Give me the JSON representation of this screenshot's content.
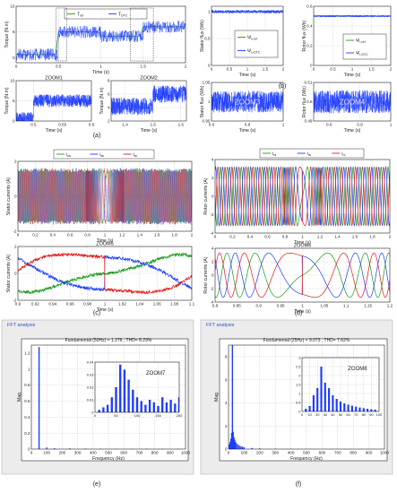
{
  "chart_data": [
    {
      "id": "torque",
      "type": "line",
      "panel_label": "",
      "ylabel": "Torque (N.m)",
      "xlabel": "Time (s)",
      "xlim": [
        0,
        2
      ],
      "ylim": [
        -1,
        10
      ],
      "x_ticks": [
        0,
        0.5,
        1,
        1.5,
        2
      ],
      "y_ticks": [
        0,
        5,
        10
      ],
      "legend": [
        "T_ref",
        "T_DTC"
      ],
      "legend_placement": "top",
      "series": [
        {
          "name": "T_ref",
          "color": "#1a9a1a",
          "steps": [
            [
              0,
              0.6
            ],
            [
              0.5,
              5
            ],
            [
              1.0,
              4.2
            ],
            [
              1.5,
              6
            ],
            [
              2,
              6
            ]
          ]
        },
        {
          "name": "T_DTC",
          "color": "#1f3dff",
          "noise": 1.2,
          "steps": [
            [
              0,
              0.6
            ],
            [
              0.5,
              5
            ],
            [
              1.0,
              4.2
            ],
            [
              1.5,
              6
            ],
            [
              2,
              6
            ]
          ]
        }
      ],
      "annotations": [
        "ZOOM1",
        "ZOOM2"
      ]
    },
    {
      "id": "stator_flux",
      "type": "line",
      "ylabel": "Stator flux (Wb)",
      "xlabel": "Time (s)",
      "xlim": [
        0,
        2
      ],
      "ylim": [
        0,
        1.1
      ],
      "x_ticks": [
        0,
        0.5,
        1,
        1.5,
        2
      ],
      "y_ticks": [
        0,
        0.5,
        1
      ],
      "legend": [
        "Ψ_s-ref",
        "Ψ_s-DTC"
      ],
      "legend_placement": "bottom-center",
      "series": [
        {
          "name": "Ψ_s-ref",
          "color": "#1a9a1a",
          "level": 1.0
        },
        {
          "name": "Ψ_s-DTC",
          "color": "#1f3dff",
          "level": 1.0,
          "noise": 0.03
        }
      ]
    },
    {
      "id": "rotor_flux",
      "type": "line",
      "ylabel": "Rotor flux (Wb)",
      "xlabel": "Time (s)",
      "xlim": [
        0,
        2
      ],
      "ylim": [
        0,
        0.6
      ],
      "x_ticks": [
        0,
        0.5,
        1,
        1.5,
        2
      ],
      "y_ticks": [
        0,
        0.2,
        0.4,
        0.6
      ],
      "legend": [
        "Ψ_r-ref",
        "Ψ_r-DTC"
      ],
      "legend_placement": "bottom-right",
      "series": [
        {
          "name": "Ψ_r-ref",
          "color": "#1a9a1a",
          "level": 0.5
        },
        {
          "name": "Ψ_r-DTC",
          "color": "#1f3dff",
          "level": 0.5,
          "noise": 0.01
        }
      ]
    },
    {
      "id": "zoom1",
      "type": "line",
      "title": "ZOOM1",
      "ylabel": "Torque (N.m)",
      "xlabel": "Time (s)",
      "xlim": [
        0.47,
        0.6
      ],
      "ylim": [
        0,
        10
      ],
      "x_ticks": [
        0.5,
        0.55,
        0.6
      ],
      "y_ticks": [
        0,
        5,
        10
      ],
      "series": [
        {
          "name": "T_DTC",
          "color": "#1f3dff",
          "noise": 1.6,
          "steps": [
            [
              0.47,
              0.6
            ],
            [
              0.5,
              5
            ],
            [
              0.6,
              5
            ]
          ]
        }
      ]
    },
    {
      "id": "zoom2",
      "type": "line",
      "title": "ZOOM2",
      "ylabel": "Torque (N.m)",
      "xlabel": "Time (s)",
      "xlim": [
        1.35,
        1.62
      ],
      "ylim": [
        2,
        8
      ],
      "x_ticks": [
        1.4,
        1.5,
        1.6
      ],
      "y_ticks": [
        2,
        4,
        6,
        8
      ],
      "series": [
        {
          "name": "T_DTC",
          "color": "#1f3dff",
          "noise": 1.3,
          "steps": [
            [
              1.35,
              4.2
            ],
            [
              1.5,
              6
            ],
            [
              1.62,
              6
            ]
          ]
        }
      ]
    },
    {
      "id": "zoom3",
      "type": "line",
      "title": "ZOOM3",
      "ylabel": "Stator flux (Wb)",
      "xlabel": "Time (s)",
      "xlim": [
        0.6,
        1
      ],
      "ylim": [
        0.95,
        1.05
      ],
      "x_ticks": [
        0.6,
        0.8,
        1
      ],
      "y_ticks": [
        0.95,
        1,
        1.05
      ],
      "series": [
        {
          "name": "Ψ_s-DTC",
          "color": "#1f3dff",
          "level": 1.0,
          "noise": 0.028
        }
      ]
    },
    {
      "id": "zoom4",
      "type": "line",
      "title": "ZOOM4",
      "ylabel": "Rotor flux (Wb)",
      "xlabel": "Time (s)",
      "xlim": [
        0.5,
        1
      ],
      "ylim": [
        0.49,
        0.51
      ],
      "x_ticks": [
        0.6,
        0.8,
        1
      ],
      "y_ticks": [
        0.49,
        0.5,
        0.51
      ],
      "series": [
        {
          "name": "Ψ_r-DTC",
          "color": "#1f3dff",
          "level": 0.5,
          "noise": 0.006
        }
      ]
    },
    {
      "id": "stator_currents",
      "type": "line",
      "ylabel": "Stator currents (A)",
      "xlabel": "Time (s)",
      "xlim": [
        0,
        2
      ],
      "ylim": [
        -2,
        2
      ],
      "x_ticks": [
        0,
        0.2,
        0.4,
        0.6,
        0.8,
        1,
        1.2,
        1.4,
        1.6,
        1.8,
        2
      ],
      "y_ticks": [
        -2,
        0,
        2
      ],
      "legend": [
        "isa",
        "isb",
        "isc"
      ],
      "legend_placement": "top",
      "wave": {
        "freq": 50,
        "amp": 1.5,
        "reversal_at": 1.0,
        "dense": true
      },
      "series": [
        {
          "name": "isa",
          "color": "#1a9a1a"
        },
        {
          "name": "isb",
          "color": "#1f3dff"
        },
        {
          "name": "isc",
          "color": "#e01a1a"
        }
      ]
    },
    {
      "id": "rotor_currents",
      "type": "line",
      "ylabel": "Rotor currents (A)",
      "xlabel": "Time (s)",
      "xlim": [
        0,
        2
      ],
      "ylim": [
        -4,
        4
      ],
      "x_ticks": [
        0,
        0.2,
        0.4,
        0.6,
        0.8,
        1,
        1.2,
        1.4,
        1.6,
        1.8,
        2
      ],
      "y_ticks": [
        -4,
        -2,
        0,
        2,
        4
      ],
      "legend": [
        "ira",
        "irb",
        "irc"
      ],
      "legend_placement": "top",
      "wave": {
        "freq": 12.5,
        "amp": 3.2,
        "reversal_at": 1.0
      },
      "series": [
        {
          "name": "ira",
          "color": "#1a9a1a"
        },
        {
          "name": "irb",
          "color": "#1f3dff"
        },
        {
          "name": "irc",
          "color": "#e01a1a"
        }
      ]
    },
    {
      "id": "zoom5",
      "type": "line",
      "title": "ZOOM5",
      "ylabel": "Stator currents (A)",
      "xlabel": "Time (s)",
      "xlim": [
        0.9,
        1.1
      ],
      "ylim": [
        -2,
        2
      ],
      "x_ticks": [
        0.9,
        0.92,
        0.94,
        0.96,
        0.98,
        1,
        1.02,
        1.04,
        1.06,
        1.08,
        1.1
      ],
      "y_ticks": [
        -2,
        0,
        2
      ],
      "wave": {
        "freq": 6,
        "amp": 1.4,
        "reversal_at": 1.0,
        "noise": 0.12
      },
      "series": [
        {
          "name": "isa",
          "color": "#1a9a1a"
        },
        {
          "name": "isb",
          "color": "#1f3dff"
        },
        {
          "name": "isc",
          "color": "#e01a1a"
        }
      ]
    },
    {
      "id": "zoom6",
      "type": "line",
      "title": "ZOOM6",
      "ylabel": "Rotor currents (A)",
      "xlabel": "Time (s)",
      "xlim": [
        0.8,
        1.2
      ],
      "ylim": [
        -4,
        4
      ],
      "x_ticks": [
        0.8,
        0.85,
        0.9,
        0.95,
        1,
        1.05,
        1.1,
        1.15,
        1.2
      ],
      "y_ticks": [
        -4,
        -2,
        0,
        2,
        4
      ],
      "wave": {
        "freq": 12.5,
        "amp": 3.3,
        "reversal_at": 1.0
      },
      "series": [
        {
          "name": "ira",
          "color": "#1a9a1a"
        },
        {
          "name": "irb",
          "color": "#1f3dff"
        },
        {
          "name": "irc",
          "color": "#e01a1a"
        }
      ]
    },
    {
      "id": "fft_stator",
      "type": "bar",
      "window_title": "FFT analysis",
      "title": "Fundamental (50Hz) = 1.276 , THD= 8.29%",
      "ylabel": "Mag",
      "xlabel": "Frequency (Hz)",
      "xlim": [
        0,
        1000
      ],
      "ylim": [
        0,
        1.3
      ],
      "x_ticks": [
        0,
        100,
        200,
        300,
        400,
        500,
        600,
        700,
        800,
        900,
        1000
      ],
      "y_ticks": [
        0,
        0.2,
        0.4,
        0.6,
        0.8,
        1,
        1.2
      ],
      "color": "#1f3dff",
      "bars": [
        [
          50,
          1.276
        ],
        [
          100,
          0.02
        ],
        [
          150,
          0.01
        ],
        [
          250,
          0.008
        ],
        [
          350,
          0.006
        ],
        [
          450,
          0.004
        ],
        [
          550,
          0.004
        ],
        [
          650,
          0.003
        ],
        [
          750,
          0.003
        ],
        [
          850,
          0.002
        ],
        [
          950,
          0.002
        ]
      ]
    },
    {
      "id": "zoom7",
      "type": "bar",
      "title": "ZOOM7",
      "xlim": [
        0,
        200
      ],
      "ylim": [
        0,
        0.04
      ],
      "x_ticks": [
        0,
        50,
        100,
        150,
        200
      ],
      "y_ticks": [
        0,
        0.01,
        0.02,
        0.03,
        0.04
      ],
      "color": "#1f3dff",
      "bars": [
        [
          10,
          0.002
        ],
        [
          20,
          0.004
        ],
        [
          30,
          0.006
        ],
        [
          40,
          0.012
        ],
        [
          50,
          0.02
        ],
        [
          60,
          0.038
        ],
        [
          70,
          0.034
        ],
        [
          80,
          0.026
        ],
        [
          90,
          0.018
        ],
        [
          100,
          0.012
        ],
        [
          110,
          0.009
        ],
        [
          120,
          0.006
        ],
        [
          130,
          0.01
        ],
        [
          140,
          0.008
        ],
        [
          150,
          0.005
        ],
        [
          160,
          0.012
        ],
        [
          170,
          0.008
        ],
        [
          180,
          0.01
        ],
        [
          190,
          0.007
        ],
        [
          200,
          0.012
        ]
      ]
    },
    {
      "id": "fft_rotor",
      "type": "bar",
      "window_title": "FFT analysis",
      "title": "Fundamental (25Hz) = 9.073 , THD= 7.62%",
      "ylabel": "Mag",
      "xlabel": "Frequency (Hz)",
      "xlim": [
        0,
        1000
      ],
      "ylim": [
        0,
        9
      ],
      "x_ticks": [
        0,
        100,
        200,
        300,
        400,
        500,
        600,
        700,
        800,
        900,
        1000
      ],
      "y_ticks": [
        0,
        2,
        4,
        6,
        8
      ],
      "color": "#1f3dff",
      "bars": [
        [
          5,
          0.4
        ],
        [
          10,
          0.6
        ],
        [
          15,
          0.9
        ],
        [
          20,
          1.4
        ],
        [
          25,
          9.073
        ],
        [
          30,
          1.5
        ],
        [
          35,
          1.0
        ],
        [
          40,
          0.8
        ],
        [
          45,
          0.6
        ],
        [
          50,
          0.5
        ],
        [
          60,
          0.4
        ],
        [
          70,
          0.3
        ],
        [
          80,
          0.25
        ],
        [
          90,
          0.2
        ],
        [
          100,
          0.15
        ],
        [
          150,
          0.1
        ],
        [
          200,
          0.06
        ],
        [
          300,
          0.04
        ],
        [
          400,
          0.03
        ]
      ]
    },
    {
      "id": "zoom8",
      "type": "bar",
      "title": "ZOOM8",
      "xlim": [
        0,
        100
      ],
      "ylim": [
        0,
        3
      ],
      "x_ticks": [
        0,
        10,
        20,
        30,
        40,
        50,
        60,
        70,
        80,
        90,
        100
      ],
      "y_ticks": [
        0,
        0.5,
        1,
        1.5,
        2,
        2.5,
        3
      ],
      "color": "#1f3dff",
      "bars": [
        [
          5,
          0.15
        ],
        [
          10,
          0.3
        ],
        [
          15,
          0.9
        ],
        [
          20,
          1.3
        ],
        [
          25,
          2.5
        ],
        [
          30,
          1.6
        ],
        [
          35,
          1.3
        ],
        [
          40,
          0.9
        ],
        [
          45,
          0.7
        ],
        [
          50,
          0.55
        ],
        [
          55,
          0.45
        ],
        [
          60,
          0.38
        ],
        [
          65,
          0.32
        ],
        [
          70,
          0.27
        ],
        [
          75,
          0.22
        ],
        [
          80,
          0.18
        ],
        [
          85,
          0.15
        ],
        [
          90,
          0.12
        ],
        [
          95,
          0.1
        ]
      ]
    }
  ],
  "panel_labels": {
    "a": "(a)",
    "b": "(b)",
    "c": "(c)",
    "d": "(d)",
    "e": "(e)",
    "f": "(f)"
  }
}
